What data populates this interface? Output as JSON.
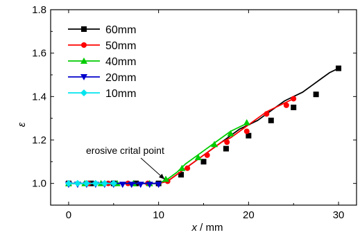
{
  "chart_data": {
    "type": "line",
    "xlabel_var": "x",
    "xlabel_unit": " / mm",
    "ylabel": "ε",
    "xlim": [
      -2,
      32
    ],
    "ylim": [
      0.9,
      1.8
    ],
    "x_ticks": [
      0,
      10,
      20,
      30
    ],
    "y_ticks": [
      1.0,
      1.2,
      1.4,
      1.6,
      1.8
    ],
    "x_tick_labels": [
      "0",
      "10",
      "20",
      "30"
    ],
    "y_tick_labels": [
      "1.0",
      "1.2",
      "1.4",
      "1.6",
      "1.8"
    ],
    "grid": false,
    "legend_position": "top-left",
    "annotation": {
      "text": "erosive crital point",
      "target": [
        10.2,
        1.0
      ]
    },
    "series": [
      {
        "name": "60mm",
        "color": "#000000",
        "marker": "square",
        "x": [
          0,
          1,
          2,
          3,
          4,
          5,
          6,
          7,
          8,
          9,
          10,
          11,
          12,
          13,
          14,
          15,
          16,
          17,
          18,
          19,
          20,
          21,
          22,
          23,
          24,
          25,
          26,
          27,
          28,
          29,
          30
        ],
        "y": [
          1.0,
          1.0,
          1.0,
          1.0,
          1.0,
          1.0,
          1.0,
          1.0,
          1.0,
          1.0,
          1.0,
          1.01,
          1.04,
          1.07,
          1.1,
          1.13,
          1.16,
          1.19,
          1.22,
          1.25,
          1.27,
          1.29,
          1.32,
          1.35,
          1.38,
          1.4,
          1.42,
          1.45,
          1.48,
          1.51,
          1.53
        ],
        "marker_x": [
          0,
          2.5,
          5,
          7.5,
          10,
          12.5,
          15,
          17.5,
          20,
          22.5,
          25,
          27.5,
          30
        ],
        "marker_y": [
          1.0,
          1.0,
          1.0,
          1.0,
          1.0,
          1.04,
          1.1,
          1.16,
          1.22,
          1.29,
          1.35,
          1.41,
          1.53
        ]
      },
      {
        "name": "50mm",
        "color": "#ff0000",
        "marker": "circle",
        "x": [
          0,
          1,
          2,
          3,
          4,
          5,
          6,
          7,
          8,
          9,
          10,
          11,
          12,
          13,
          14,
          15,
          16,
          17,
          18,
          19,
          20,
          21,
          22,
          23,
          24,
          25
        ],
        "y": [
          1.0,
          1.0,
          1.0,
          1.0,
          1.0,
          1.0,
          1.0,
          1.0,
          1.0,
          1.0,
          1.0,
          1.01,
          1.04,
          1.07,
          1.1,
          1.13,
          1.16,
          1.19,
          1.21,
          1.24,
          1.27,
          1.3,
          1.33,
          1.35,
          1.37,
          1.39
        ],
        "marker_x": [
          0,
          2.2,
          4.4,
          6.6,
          8.8,
          11,
          13.2,
          15.4,
          17.6,
          19.8,
          22,
          24.2,
          25
        ],
        "marker_y": [
          1.0,
          1.0,
          1.0,
          1.0,
          1.0,
          1.01,
          1.07,
          1.13,
          1.19,
          1.24,
          1.32,
          1.36,
          1.39
        ]
      },
      {
        "name": "40mm",
        "color": "#00cc00",
        "marker": "triangle-up",
        "x": [
          0,
          1,
          2,
          3,
          4,
          5,
          6,
          7,
          8,
          9,
          10,
          11,
          12,
          13,
          14,
          15,
          16,
          17,
          18,
          19,
          20
        ],
        "y": [
          1.0,
          1.0,
          1.0,
          1.0,
          1.0,
          1.0,
          1.0,
          1.0,
          1.0,
          1.0,
          1.0,
          1.02,
          1.05,
          1.09,
          1.12,
          1.15,
          1.18,
          1.21,
          1.24,
          1.26,
          1.28
        ],
        "marker_x": [
          0,
          1.8,
          3.6,
          5.4,
          7.2,
          9,
          10.8,
          12.6,
          14.4,
          16.2,
          18,
          19.8
        ],
        "marker_y": [
          1.0,
          1.0,
          1.0,
          1.0,
          1.0,
          1.0,
          1.02,
          1.07,
          1.12,
          1.18,
          1.23,
          1.28
        ]
      },
      {
        "name": "20mm",
        "color": "#0000cc",
        "marker": "triangle-down",
        "x": [
          0,
          1,
          2,
          3,
          4,
          5,
          6,
          7,
          8,
          9,
          10
        ],
        "y": [
          1.0,
          1.0,
          1.0,
          1.0,
          1.0,
          1.0,
          1.0,
          1.0,
          1.0,
          1.0,
          1.0
        ],
        "marker_x": [
          0,
          1,
          2,
          3,
          4,
          5,
          6,
          7,
          8,
          9,
          10
        ],
        "marker_y": [
          0.995,
          0.995,
          0.995,
          0.995,
          0.995,
          0.995,
          0.995,
          0.995,
          0.995,
          0.995,
          0.995
        ]
      },
      {
        "name": "10mm",
        "color": "#00e5ee",
        "marker": "diamond",
        "x": [
          0,
          1,
          2,
          3,
          4,
          5
        ],
        "y": [
          1.0,
          1.0,
          1.0,
          1.0,
          1.0,
          1.0
        ],
        "marker_x": [
          0,
          1,
          2,
          3,
          4,
          5
        ],
        "marker_y": [
          1.0,
          1.0,
          1.0,
          1.0,
          1.0,
          1.0
        ]
      }
    ]
  }
}
